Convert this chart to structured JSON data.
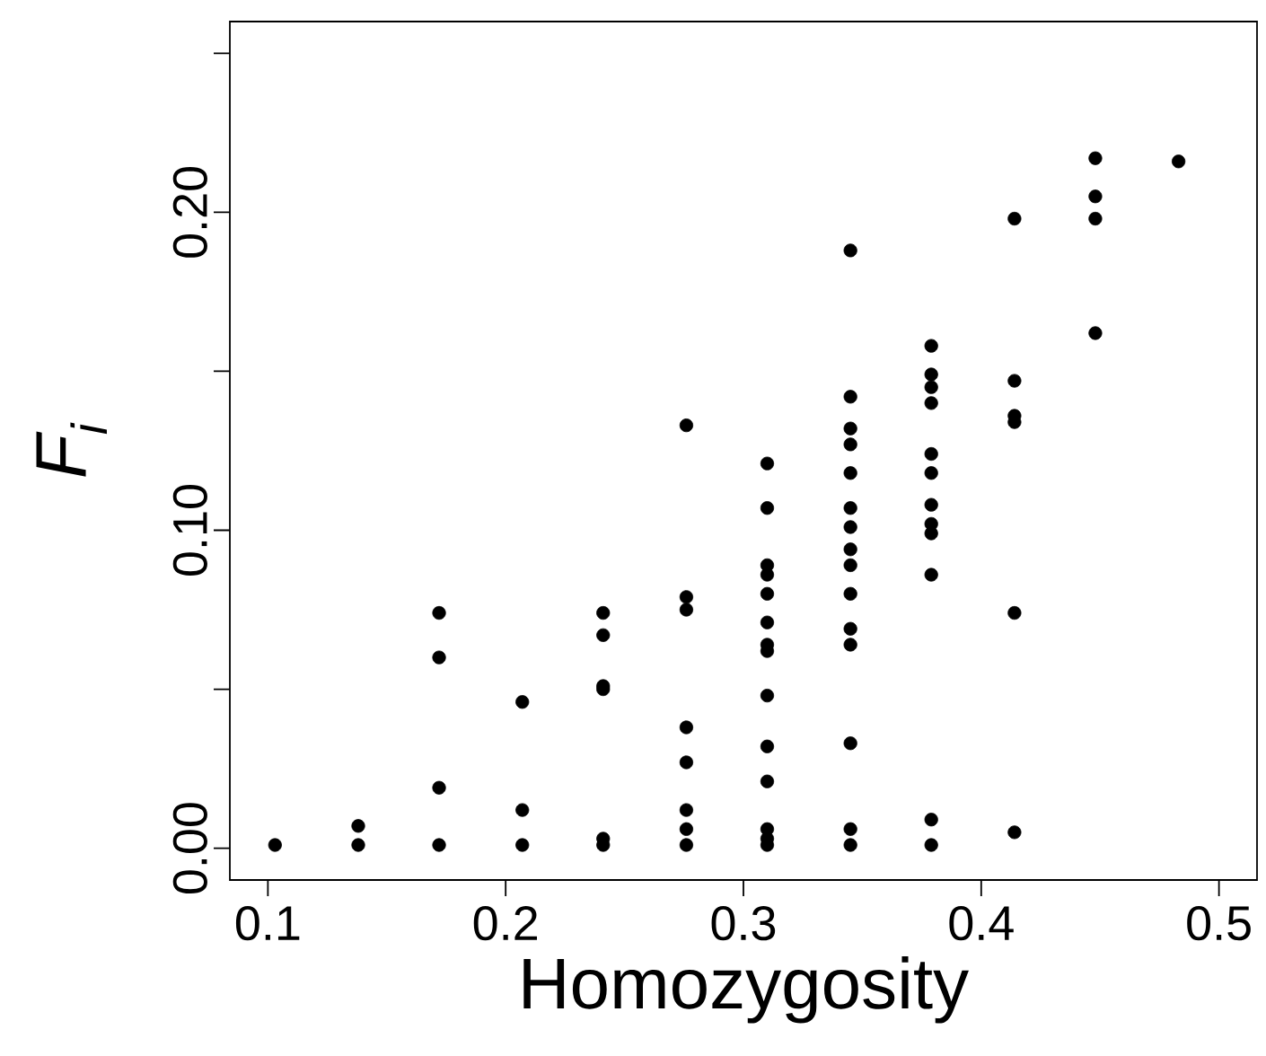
{
  "chart_data": {
    "type": "scatter",
    "xlabel": "Homozygosity",
    "ylabel": "F$_{i}$",
    "marker": "circle",
    "grid": false,
    "xlim": [
      0.084,
      0.516
    ],
    "ylim": [
      -0.01,
      0.26
    ],
    "xticks": [
      0.1,
      0.2,
      0.3,
      0.4,
      0.5
    ],
    "yticks": [
      {
        "value": 0,
        "label": "0.00"
      },
      {
        "value": 0.05,
        "label": null
      },
      {
        "value": 0.1,
        "label": "0.10"
      },
      {
        "value": 0.15,
        "label": null
      },
      {
        "value": 0.2,
        "label": "0.20"
      },
      {
        "value": 0.25,
        "label": null
      }
    ],
    "series": [
      {
        "color": "#000000",
        "x": [
          0.103,
          0.138,
          0.138,
          0.172,
          0.172,
          0.172,
          0.172,
          0.207,
          0.207,
          0.207,
          0.241,
          0.241,
          0.241,
          0.241,
          0.241,
          0.241,
          0.276,
          0.276,
          0.276,
          0.276,
          0.276,
          0.276,
          0.276,
          0.276,
          0.31,
          0.31,
          0.31,
          0.31,
          0.31,
          0.31,
          0.31,
          0.31,
          0.31,
          0.31,
          0.31,
          0.31,
          0.31,
          0.31,
          0.345,
          0.345,
          0.345,
          0.345,
          0.345,
          0.345,
          0.345,
          0.345,
          0.345,
          0.345,
          0.345,
          0.345,
          0.345,
          0.345,
          0.345,
          0.379,
          0.379,
          0.379,
          0.379,
          0.379,
          0.379,
          0.379,
          0.379,
          0.379,
          0.379,
          0.379,
          0.379,
          0.414,
          0.414,
          0.414,
          0.414,
          0.414,
          0.414,
          0.448,
          0.448,
          0.448,
          0.448,
          0.483
        ],
        "values": [
          0.001,
          0.001,
          0.007,
          0.001,
          0.019,
          0.06,
          0.074,
          0.001,
          0.012,
          0.046,
          0.001,
          0.003,
          0.05,
          0.051,
          0.067,
          0.074,
          0.001,
          0.006,
          0.012,
          0.027,
          0.038,
          0.075,
          0.079,
          0.133,
          0.001,
          0.003,
          0.006,
          0.021,
          0.032,
          0.048,
          0.062,
          0.064,
          0.071,
          0.08,
          0.086,
          0.089,
          0.107,
          0.121,
          0.001,
          0.006,
          0.033,
          0.064,
          0.069,
          0.08,
          0.089,
          0.094,
          0.101,
          0.107,
          0.118,
          0.127,
          0.132,
          0.142,
          0.188,
          0.001,
          0.009,
          0.086,
          0.099,
          0.102,
          0.108,
          0.118,
          0.124,
          0.14,
          0.145,
          0.149,
          0.158,
          0.005,
          0.074,
          0.134,
          0.136,
          0.147,
          0.198,
          0.162,
          0.198,
          0.205,
          0.217,
          0.216
        ]
      }
    ]
  }
}
